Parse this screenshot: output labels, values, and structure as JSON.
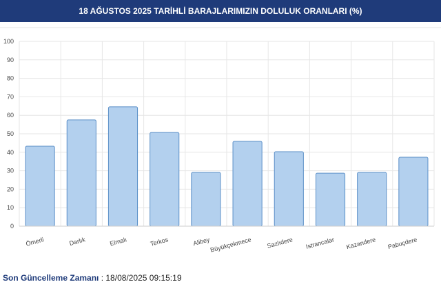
{
  "chart_data": {
    "type": "bar",
    "title": "18 AĞUSTOS 2025 TARİHLİ BARAJLARIMIZIN DOLULUK ORANLARI (%)",
    "categories": [
      "Ömerli",
      "Darlık",
      "Elmalı",
      "Terkos",
      "Alibey",
      "Büyükçekmece",
      "Sazlıdere",
      "Istrancalar",
      "Kazandere",
      "Pabuçdere"
    ],
    "values": [
      43.3,
      57.5,
      64.6,
      50.7,
      29.1,
      45.9,
      40.3,
      28.7,
      29.1,
      37.3
    ],
    "color": "#b3d0ee",
    "edge_color": "#5b8fc7",
    "ylim": [
      0,
      100
    ],
    "yticks": [
      0,
      10,
      20,
      30,
      40,
      50,
      60,
      70,
      80,
      90,
      100
    ],
    "grid": true
  },
  "footer": {
    "label": "Son Güncelleme Zamanı",
    "value": ": 18/08/2025 09:15:19"
  }
}
